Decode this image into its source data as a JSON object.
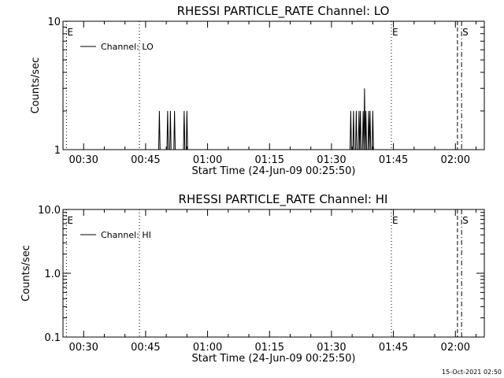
{
  "chart_data": [
    {
      "type": "line",
      "title": "RHESSI PARTICLE_RATE Channel: LO",
      "xlabel": "Start Time (24-Jun-09 00:25:50)",
      "ylabel": "Counts/sec",
      "yscale": "log",
      "ylim": [
        1,
        10
      ],
      "xlim": [
        "00:25",
        "02:07"
      ],
      "x_ticks": [
        "00:30",
        "00:45",
        "01:00",
        "01:15",
        "01:30",
        "01:45",
        "02:00"
      ],
      "y_ticks": [
        "1",
        "10"
      ],
      "legend": "top-left",
      "series": [
        {
          "name": "Channel: LO",
          "x": [
            "00:48:00",
            "00:48:20",
            "00:48:40",
            "00:49:00",
            "00:49:20",
            "00:49:40",
            "00:50:00",
            "00:50:20",
            "00:50:40",
            "00:51:00",
            "00:51:20",
            "00:51:40",
            "00:52:00",
            "00:52:20",
            "00:52:40",
            "00:53:00",
            "00:53:20",
            "00:53:40",
            "00:54:00",
            "00:54:20",
            "00:54:40",
            "00:55:00",
            "00:55:20",
            "01:34:20",
            "01:34:40",
            "01:35:00",
            "01:35:20",
            "01:35:40",
            "01:36:00",
            "01:36:20",
            "01:36:40",
            "01:37:00",
            "01:37:20",
            "01:37:40",
            "01:38:00",
            "01:38:20",
            "01:38:40",
            "01:39:00",
            "01:39:20",
            "01:39:40",
            "01:40:00",
            "01:40:20"
          ],
          "y": [
            1,
            2,
            1,
            1,
            1,
            1,
            1,
            2,
            1,
            2,
            1,
            1,
            2,
            1,
            1,
            1,
            1,
            1,
            1,
            2,
            1,
            2,
            1,
            1,
            2,
            1,
            2,
            1,
            2,
            1,
            2,
            2,
            1,
            2,
            3,
            2,
            1,
            2,
            2,
            1,
            2,
            1
          ]
        }
      ],
      "markers": [
        {
          "label": "E",
          "time": "00:25:50",
          "style": "dotted"
        },
        {
          "label": "",
          "time": "00:43:30",
          "style": "dotted"
        },
        {
          "label": "E",
          "time": "01:44:30",
          "style": "dotted"
        },
        {
          "label": "",
          "time": "02:00:30",
          "style": "dashed"
        },
        {
          "label": "S",
          "time": "02:01:30",
          "style": "dashdot"
        }
      ]
    },
    {
      "type": "line",
      "title": "RHESSI PARTICLE_RATE Channel: HI",
      "xlabel": "Start Time (24-Jun-09 00:25:50)",
      "ylabel": "Counts/sec",
      "yscale": "log",
      "ylim": [
        0.1,
        10
      ],
      "xlim": [
        "00:25",
        "02:07"
      ],
      "x_ticks": [
        "00:30",
        "00:45",
        "01:00",
        "01:15",
        "01:30",
        "01:45",
        "02:00"
      ],
      "y_ticks": [
        "0.1",
        "1.0",
        "10.0"
      ],
      "legend": "top-left",
      "series": [
        {
          "name": "Channel: HI",
          "x": [],
          "y": []
        }
      ],
      "markers": [
        {
          "label": "E",
          "time": "00:25:50",
          "style": "dotted"
        },
        {
          "label": "",
          "time": "00:43:30",
          "style": "dotted"
        },
        {
          "label": "E",
          "time": "01:44:30",
          "style": "dotted"
        },
        {
          "label": "",
          "time": "02:00:30",
          "style": "dashed"
        },
        {
          "label": "S",
          "time": "02:01:30",
          "style": "dashdot"
        }
      ]
    }
  ],
  "footer": {
    "timestamp": "15-Oct-2021 02:50"
  }
}
